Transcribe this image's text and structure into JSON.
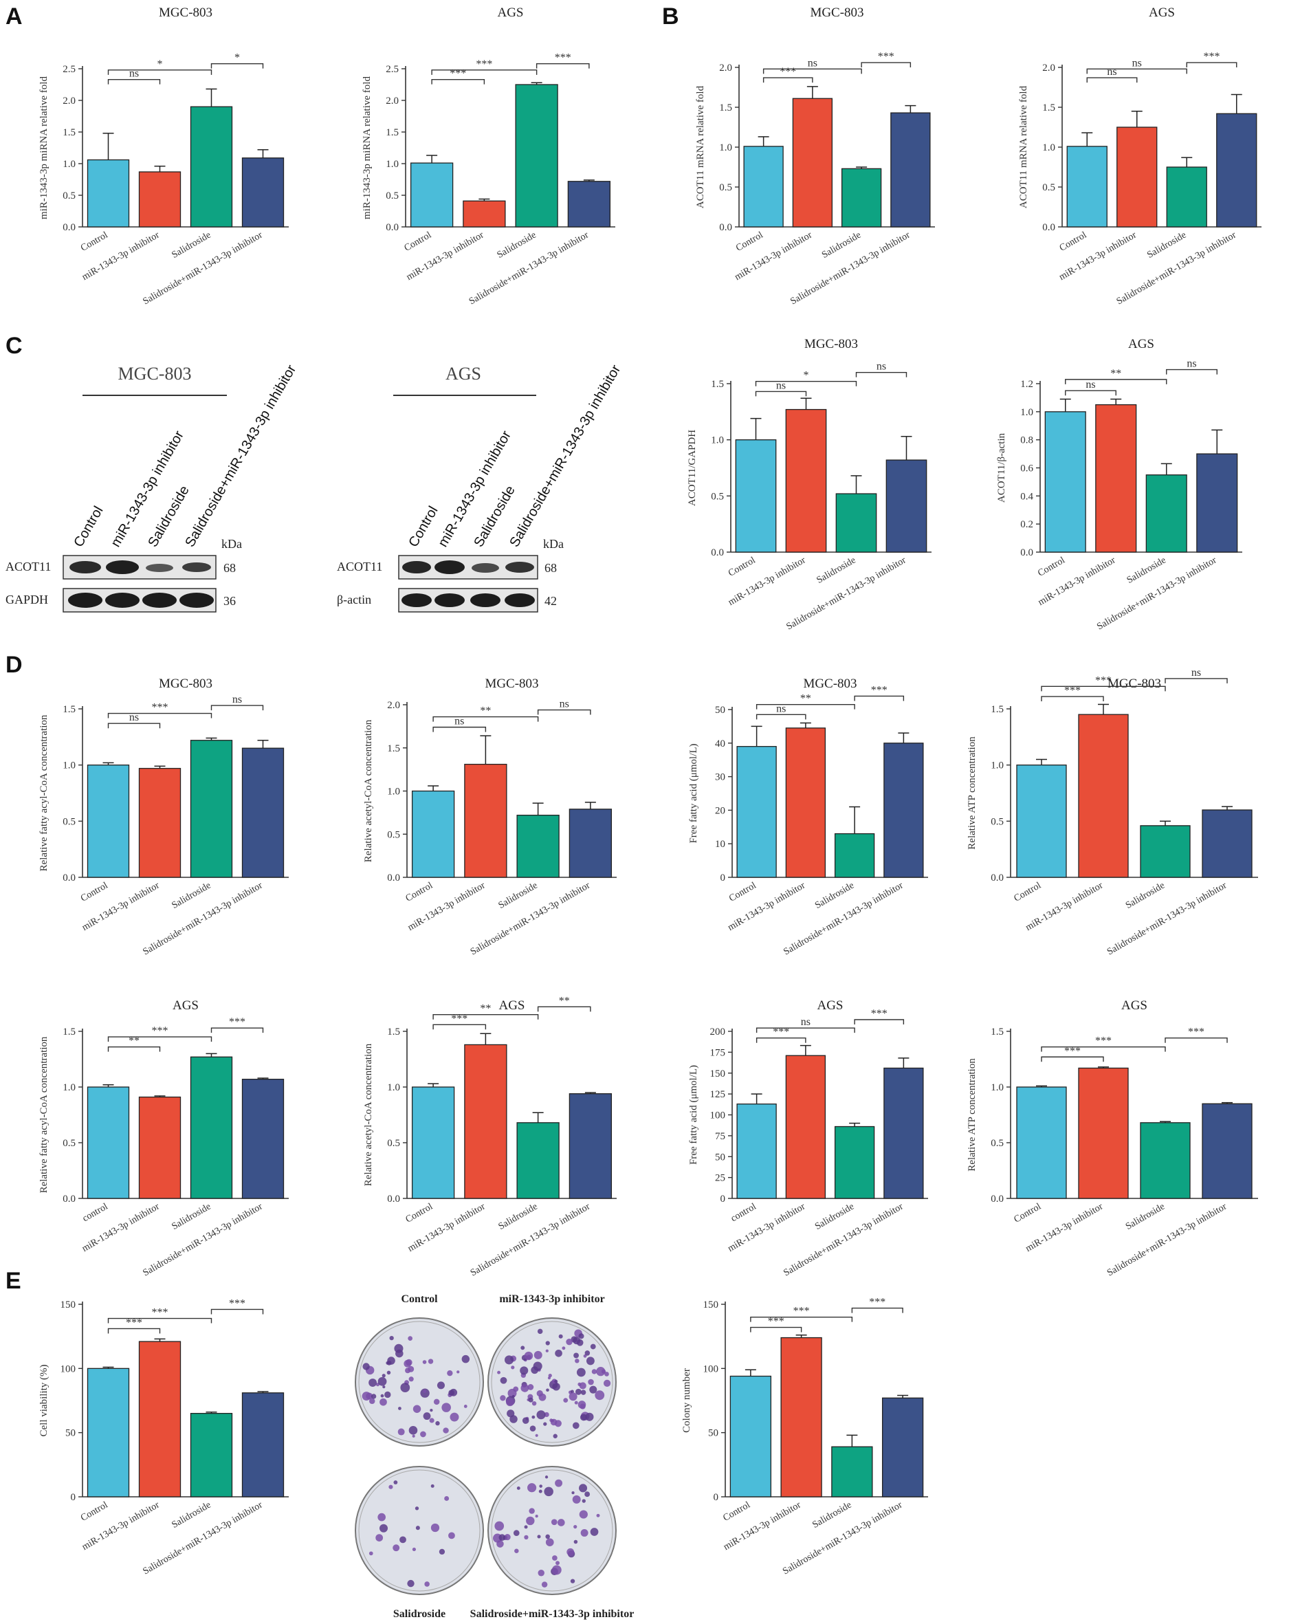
{
  "panels": [
    "A",
    "B",
    "C",
    "D",
    "E"
  ],
  "colors": [
    "#4bbcd9",
    "#e84e38",
    "#0ea382",
    "#3b5289"
  ],
  "categories": [
    "Control",
    "miR-1343-3p inhibitor",
    "Salidroside",
    "Salidroside+miR-1343-3p inhibitor"
  ],
  "categories_lower": [
    "control",
    "miR-1343-3p inhibitor",
    "Salidroside",
    "Salidroside+miR-1343-3p inhibitor"
  ],
  "blots": {
    "left": {
      "title": "MGC-803",
      "lanes": [
        "Control",
        "miR-1343-3p inhibitor",
        "Salidroside",
        "Salidroside+miR-1343-3p inhibitor"
      ],
      "kda_label": "kDa",
      "rows": [
        {
          "name": "ACOT11",
          "kda": "68"
        },
        {
          "name": "GAPDH",
          "kda": "36"
        }
      ]
    },
    "right": {
      "title": "AGS",
      "lanes": [
        "Control",
        "miR-1343-3p inhibitor",
        "Salidroside",
        "Salidroside+miR-1343-3p inhibitor"
      ],
      "kda_label": "kDa",
      "rows": [
        {
          "name": "ACOT11",
          "kda": "68"
        },
        {
          "name": "β-actin",
          "kda": "42"
        }
      ]
    }
  },
  "colony": {
    "labels": [
      "Control",
      "miR-1343-3p inhibitor",
      "Salidroside",
      "Salidroside+miR-1343-3p inhibitor"
    ],
    "density": [
      55,
      95,
      18,
      45
    ]
  },
  "chart_data": [
    {
      "id": "A1",
      "type": "bar",
      "title": "MGC-803",
      "ylabel": "miR-1343-3p miRNA relative fold",
      "ylim": [
        0,
        2.5
      ],
      "yticks": [
        "0.0",
        "0.5",
        "1.0",
        "1.5",
        "2.0",
        "2.5"
      ],
      "values": [
        1.06,
        0.87,
        1.9,
        1.09
      ],
      "errors": [
        0.42,
        0.09,
        0.28,
        0.13
      ],
      "cat": "categories",
      "brackets": [
        {
          "from": 0,
          "to": 1,
          "y": 2.33,
          "label": "ns"
        },
        {
          "from": 0,
          "to": 2,
          "y": 2.48,
          "label": "*"
        },
        {
          "from": 2,
          "to": 3,
          "y": 2.58,
          "label": "*"
        }
      ]
    },
    {
      "id": "A2",
      "type": "bar",
      "title": "AGS",
      "ylabel": "miR-1343-3p miRNA relative fold",
      "ylim": [
        0,
        2.5
      ],
      "yticks": [
        "0.0",
        "0.5",
        "1.0",
        "1.5",
        "2.0",
        "2.5"
      ],
      "values": [
        1.01,
        0.41,
        2.25,
        0.72
      ],
      "errors": [
        0.12,
        0.03,
        0.03,
        0.02
      ],
      "cat": "categories",
      "brackets": [
        {
          "from": 0,
          "to": 1,
          "y": 2.33,
          "label": "***"
        },
        {
          "from": 0,
          "to": 2,
          "y": 2.48,
          "label": "***"
        },
        {
          "from": 2,
          "to": 3,
          "y": 2.58,
          "label": "***"
        }
      ]
    },
    {
      "id": "B1",
      "type": "bar",
      "title": "MGC-803",
      "ylabel": "ACOT11 mRNA relative fold",
      "ylim": [
        0,
        2.0
      ],
      "yticks": [
        "0.0",
        "0.5",
        "1.0",
        "1.5",
        "2.0"
      ],
      "values": [
        1.01,
        1.61,
        0.73,
        1.43
      ],
      "errors": [
        0.12,
        0.15,
        0.02,
        0.09
      ],
      "cat": "categories",
      "brackets": [
        {
          "from": 0,
          "to": 1,
          "y": 1.87,
          "label": "***"
        },
        {
          "from": 0,
          "to": 2,
          "y": 1.98,
          "label": "ns"
        },
        {
          "from": 2,
          "to": 3,
          "y": 2.06,
          "label": "***"
        }
      ]
    },
    {
      "id": "B2",
      "type": "bar",
      "title": "AGS",
      "ylabel": "ACOT11 mRNA relative fold",
      "ylim": [
        0,
        2.0
      ],
      "yticks": [
        "0.0",
        "0.5",
        "1.0",
        "1.5",
        "2.0"
      ],
      "values": [
        1.01,
        1.25,
        0.75,
        1.42
      ],
      "errors": [
        0.17,
        0.2,
        0.12,
        0.24
      ],
      "cat": "categories",
      "brackets": [
        {
          "from": 0,
          "to": 1,
          "y": 1.87,
          "label": "ns"
        },
        {
          "from": 0,
          "to": 2,
          "y": 1.98,
          "label": "ns"
        },
        {
          "from": 2,
          "to": 3,
          "y": 2.06,
          "label": "***"
        }
      ]
    },
    {
      "id": "C1",
      "type": "bar",
      "title": "MGC-803",
      "ylabel": "ACOT11/GAPDH",
      "ylim": [
        0,
        1.5
      ],
      "yticks": [
        "0.0",
        "0.5",
        "1.0",
        "1.5"
      ],
      "values": [
        1.0,
        1.27,
        0.52,
        0.82
      ],
      "errors": [
        0.19,
        0.1,
        0.16,
        0.21
      ],
      "cat": "categories",
      "brackets": [
        {
          "from": 0,
          "to": 1,
          "y": 1.43,
          "label": "ns"
        },
        {
          "from": 0,
          "to": 2,
          "y": 1.52,
          "label": "*"
        },
        {
          "from": 2,
          "to": 3,
          "y": 1.6,
          "label": "ns"
        }
      ]
    },
    {
      "id": "C2",
      "type": "bar",
      "title": "AGS",
      "ylabel": "ACOT11/β-actin",
      "ylim": [
        0,
        1.2
      ],
      "yticks": [
        "0.0",
        "0.2",
        "0.4",
        "0.6",
        "0.8",
        "1.0",
        "1.2"
      ],
      "values": [
        1.0,
        1.05,
        0.55,
        0.7
      ],
      "errors": [
        0.09,
        0.04,
        0.08,
        0.17
      ],
      "cat": "categories",
      "brackets": [
        {
          "from": 0,
          "to": 1,
          "y": 1.15,
          "label": "ns"
        },
        {
          "from": 0,
          "to": 2,
          "y": 1.23,
          "label": "**"
        },
        {
          "from": 2,
          "to": 3,
          "y": 1.3,
          "label": "ns"
        }
      ]
    },
    {
      "id": "D1",
      "type": "bar",
      "title": "MGC-803",
      "ylabel": "Relative fatty acyl-CoA concentration",
      "ylim": [
        0,
        1.5
      ],
      "yticks": [
        "0.0",
        "0.5",
        "1.0",
        "1.5"
      ],
      "values": [
        1.0,
        0.97,
        1.22,
        1.15
      ],
      "errors": [
        0.02,
        0.02,
        0.02,
        0.07
      ],
      "cat": "categories",
      "brackets": [
        {
          "from": 0,
          "to": 1,
          "y": 1.37,
          "label": "ns"
        },
        {
          "from": 0,
          "to": 2,
          "y": 1.46,
          "label": "***"
        },
        {
          "from": 2,
          "to": 3,
          "y": 1.53,
          "label": "ns"
        }
      ]
    },
    {
      "id": "D2",
      "type": "bar",
      "title": "MGC-803",
      "ylabel": "Relative acetyl-CoA concentration",
      "ylim": [
        0,
        2.0
      ],
      "yticks": [
        "0.0",
        "0.5",
        "1.0",
        "1.5",
        "2.0"
      ],
      "values": [
        1.0,
        1.31,
        0.72,
        0.79
      ],
      "errors": [
        0.06,
        0.33,
        0.14,
        0.08
      ],
      "cat": "categories",
      "brackets": [
        {
          "from": 0,
          "to": 1,
          "y": 1.74,
          "label": "ns"
        },
        {
          "from": 0,
          "to": 2,
          "y": 1.86,
          "label": "**"
        },
        {
          "from": 2,
          "to": 3,
          "y": 1.94,
          "label": "ns"
        }
      ]
    },
    {
      "id": "D3",
      "type": "bar",
      "title": "MGC-803",
      "ylabel": "Free fatty acid (μmol/L)",
      "ylim": [
        0,
        50
      ],
      "yticks": [
        "0",
        "10",
        "20",
        "30",
        "40",
        "50"
      ],
      "values": [
        39,
        44.5,
        13,
        40
      ],
      "errors": [
        6,
        1.5,
        8,
        3
      ],
      "cat": "categories",
      "brackets": [
        {
          "from": 0,
          "to": 1,
          "y": 48.5,
          "label": "ns"
        },
        {
          "from": 0,
          "to": 2,
          "y": 51.5,
          "label": "**"
        },
        {
          "from": 2,
          "to": 3,
          "y": 54,
          "label": "***"
        }
      ]
    },
    {
      "id": "D4",
      "type": "bar",
      "title": "MGC-803",
      "ylabel": "Relative ATP concentration",
      "ylim": [
        0,
        1.5
      ],
      "yticks": [
        "0.0",
        "0.5",
        "1.0",
        "1.5"
      ],
      "values": [
        1.0,
        1.45,
        0.46,
        0.6
      ],
      "errors": [
        0.05,
        0.09,
        0.04,
        0.03
      ],
      "cat": "categories",
      "brackets": [
        {
          "from": 0,
          "to": 1,
          "y": 1.61,
          "label": "***"
        },
        {
          "from": 0,
          "to": 2,
          "y": 1.7,
          "label": "***"
        },
        {
          "from": 2,
          "to": 3,
          "y": 1.77,
          "label": "ns"
        }
      ]
    },
    {
      "id": "D5",
      "type": "bar",
      "title": "AGS",
      "ylabel": "Relative fatty acyl-CoA concentration",
      "ylim": [
        0,
        1.5
      ],
      "yticks": [
        "0.0",
        "0.5",
        "1.0",
        "1.5"
      ],
      "values": [
        1.0,
        0.91,
        1.27,
        1.07
      ],
      "errors": [
        0.02,
        0.01,
        0.03,
        0.01
      ],
      "cat": "categories_lower",
      "brackets": [
        {
          "from": 0,
          "to": 1,
          "y": 1.36,
          "label": "**"
        },
        {
          "from": 0,
          "to": 2,
          "y": 1.45,
          "label": "***"
        },
        {
          "from": 2,
          "to": 3,
          "y": 1.53,
          "label": "***"
        }
      ]
    },
    {
      "id": "D6",
      "type": "bar",
      "title": "AGS",
      "ylabel": "Relative acetyl-CoA concentration",
      "ylim": [
        0,
        1.5
      ],
      "yticks": [
        "0.0",
        "0.5",
        "1.0",
        "1.5"
      ],
      "values": [
        1.0,
        1.38,
        0.68,
        0.94
      ],
      "errors": [
        0.03,
        0.1,
        0.09,
        0.01
      ],
      "cat": "categories",
      "brackets": [
        {
          "from": 0,
          "to": 1,
          "y": 1.56,
          "label": "***"
        },
        {
          "from": 0,
          "to": 2,
          "y": 1.65,
          "label": "**"
        },
        {
          "from": 2,
          "to": 3,
          "y": 1.72,
          "label": "**"
        }
      ]
    },
    {
      "id": "D7",
      "type": "bar",
      "title": "AGS",
      "ylabel": "Free fatty acid (μmol/L)",
      "ylim": [
        0,
        200
      ],
      "yticks": [
        "0",
        "25",
        "50",
        "75",
        "100",
        "125",
        "150",
        "175",
        "200"
      ],
      "values": [
        113,
        171,
        86,
        156
      ],
      "errors": [
        12,
        12,
        4,
        12
      ],
      "cat": "categories_lower",
      "brackets": [
        {
          "from": 0,
          "to": 1,
          "y": 192,
          "label": "***"
        },
        {
          "from": 0,
          "to": 2,
          "y": 204,
          "label": "ns"
        },
        {
          "from": 2,
          "to": 3,
          "y": 214,
          "label": "***"
        }
      ]
    },
    {
      "id": "D8",
      "type": "bar",
      "title": "AGS",
      "ylabel": "Relative ATP concentration",
      "ylim": [
        0,
        1.5
      ],
      "yticks": [
        "0.0",
        "0.5",
        "1.0",
        "1.5"
      ],
      "values": [
        1.0,
        1.17,
        0.68,
        0.85
      ],
      "errors": [
        0.01,
        0.01,
        0.01,
        0.01
      ],
      "cat": "categories",
      "brackets": [
        {
          "from": 0,
          "to": 1,
          "y": 1.27,
          "label": "***"
        },
        {
          "from": 0,
          "to": 2,
          "y": 1.36,
          "label": "***"
        },
        {
          "from": 2,
          "to": 3,
          "y": 1.44,
          "label": "***"
        }
      ]
    },
    {
      "id": "E1",
      "type": "bar",
      "title": "",
      "ylabel": "Cell viability (%)",
      "ylim": [
        0,
        150
      ],
      "yticks": [
        "0",
        "50",
        "100",
        "150"
      ],
      "values": [
        100,
        121,
        65,
        81
      ],
      "errors": [
        1,
        2,
        1,
        1
      ],
      "cat": "categories",
      "brackets": [
        {
          "from": 0,
          "to": 1,
          "y": 131,
          "label": "***"
        },
        {
          "from": 0,
          "to": 2,
          "y": 139,
          "label": "***"
        },
        {
          "from": 2,
          "to": 3,
          "y": 146,
          "label": "***"
        }
      ]
    },
    {
      "id": "E2",
      "type": "bar",
      "title": "",
      "ylabel": "Colony number",
      "ylim": [
        0,
        150
      ],
      "yticks": [
        "0",
        "50",
        "100",
        "150"
      ],
      "values": [
        94,
        124,
        39,
        77
      ],
      "errors": [
        5,
        2,
        9,
        2
      ],
      "cat": "categories",
      "brackets": [
        {
          "from": 0,
          "to": 1,
          "y": 132,
          "label": "***"
        },
        {
          "from": 0,
          "to": 2,
          "y": 140,
          "label": "***"
        },
        {
          "from": 2,
          "to": 3,
          "y": 147,
          "label": "***"
        }
      ]
    }
  ]
}
